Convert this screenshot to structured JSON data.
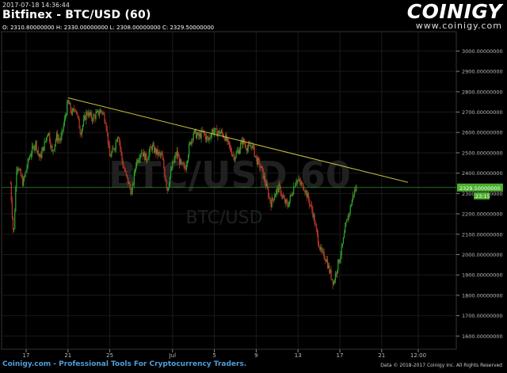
{
  "header": {
    "timestamp": "2017-07-18 14:36:44",
    "title": "Bitfinex - BTC/USD (60)",
    "ohlc": "O: 2310.80000000 H: 2330.00000000 L: 2308.00000000 C: 2329.50000000"
  },
  "brand": {
    "logo_text": "COINIGY",
    "url": "www.coinigy.com"
  },
  "watermark": {
    "line1": "BTC/USD 60",
    "line2": "BTC/USD"
  },
  "footer": {
    "left": "Coinigy.com - Professional Tools For Cryptocurrency Traders.",
    "right": "Data © 2018-2017 Coinigy Inc. All Rights Reserved"
  },
  "colors": {
    "background": "#000000",
    "up": "#2fa52f",
    "down": "#c0392b",
    "trendline": "#c9c53a",
    "price_line": "#2e8b2e",
    "price_label_bg": "#4caf2f",
    "grid": "#1a1a1a",
    "axis_text": "#bbbbbb",
    "footer_link": "#4f9ed8"
  },
  "chart_data": {
    "type": "candlestick",
    "symbol": "BTC/USD",
    "exchange": "Bitfinex",
    "interval": "60",
    "ylim": [
      1535,
      3095
    ],
    "y_ticks": [
      1600,
      1700,
      1800,
      1900,
      2000,
      2100,
      2200,
      2300,
      2400,
      2500,
      2600,
      2700,
      2800,
      2900,
      3000
    ],
    "y_tick_labels": [
      "1600.00000000",
      "1700.00000000",
      "1800.00000000",
      "1900.00000000",
      "2000.00000000",
      "2100.00000000",
      "2200.00000000",
      "2300.00000000",
      "2400.00000000",
      "2500.00000000",
      "2600.00000000",
      "2700.00000000",
      "2800.00000000",
      "2900.00000000",
      "3000.00000000"
    ],
    "x_ticks": [
      {
        "label": "17",
        "day": 0
      },
      {
        "label": "21",
        "day": 4
      },
      {
        "label": "25",
        "day": 8
      },
      {
        "label": "Jul",
        "day": 14
      },
      {
        "label": "5",
        "day": 18
      },
      {
        "label": "9",
        "day": 22
      },
      {
        "label": "13",
        "day": 26
      },
      {
        "label": "17",
        "day": 30
      },
      {
        "label": "21",
        "day": 34
      },
      {
        "label": "12:00",
        "day": 37.5
      }
    ],
    "x_tick_dates": [
      "2017-06-17",
      "2017-06-21",
      "2017-06-25",
      "2017-07-01",
      "2017-07-05",
      "2017-07-09",
      "2017-07-13",
      "2017-07-17",
      "2017-07-21",
      "2017-07-24 12:00"
    ],
    "last_price": 2329.5,
    "last_price_label": "2329.50000000",
    "countdown_label": "23:15",
    "trendline": {
      "start": {
        "day": 4,
        "price": 2770
      },
      "end": {
        "day": 36.5,
        "price": 2355
      }
    },
    "path_anchors": [
      {
        "day": -1.5,
        "price": 2350
      },
      {
        "day": -1.2,
        "price": 2080
      },
      {
        "day": -0.9,
        "price": 2450
      },
      {
        "day": -0.3,
        "price": 2350
      },
      {
        "day": 0.3,
        "price": 2480
      },
      {
        "day": 0.9,
        "price": 2550
      },
      {
        "day": 1.3,
        "price": 2470
      },
      {
        "day": 1.8,
        "price": 2550
      },
      {
        "day": 2.1,
        "price": 2610
      },
      {
        "day": 2.5,
        "price": 2500
      },
      {
        "day": 2.9,
        "price": 2580
      },
      {
        "day": 3.3,
        "price": 2560
      },
      {
        "day": 3.6,
        "price": 2640
      },
      {
        "day": 4.0,
        "price": 2750
      },
      {
        "day": 4.4,
        "price": 2690
      },
      {
        "day": 4.7,
        "price": 2730
      },
      {
        "day": 5.2,
        "price": 2600
      },
      {
        "day": 5.8,
        "price": 2700
      },
      {
        "day": 6.3,
        "price": 2670
      },
      {
        "day": 6.8,
        "price": 2690
      },
      {
        "day": 7.2,
        "price": 2710
      },
      {
        "day": 7.6,
        "price": 2660
      },
      {
        "day": 8.0,
        "price": 2480
      },
      {
        "day": 8.4,
        "price": 2520
      },
      {
        "day": 8.8,
        "price": 2600
      },
      {
        "day": 9.2,
        "price": 2450
      },
      {
        "day": 9.6,
        "price": 2380
      },
      {
        "day": 10.1,
        "price": 2300
      },
      {
        "day": 10.5,
        "price": 2450
      },
      {
        "day": 11.0,
        "price": 2510
      },
      {
        "day": 11.5,
        "price": 2470
      },
      {
        "day": 12.0,
        "price": 2530
      },
      {
        "day": 12.5,
        "price": 2500
      },
      {
        "day": 13.0,
        "price": 2480
      },
      {
        "day": 13.5,
        "price": 2320
      },
      {
        "day": 14.0,
        "price": 2440
      },
      {
        "day": 14.4,
        "price": 2500
      },
      {
        "day": 14.8,
        "price": 2440
      },
      {
        "day": 15.2,
        "price": 2420
      },
      {
        "day": 15.6,
        "price": 2530
      },
      {
        "day": 16.0,
        "price": 2600
      },
      {
        "day": 16.5,
        "price": 2580
      },
      {
        "day": 16.9,
        "price": 2600
      },
      {
        "day": 17.4,
        "price": 2560
      },
      {
        "day": 17.8,
        "price": 2610
      },
      {
        "day": 18.2,
        "price": 2600
      },
      {
        "day": 18.6,
        "price": 2600
      },
      {
        "day": 19.0,
        "price": 2580
      },
      {
        "day": 19.5,
        "price": 2520
      },
      {
        "day": 19.9,
        "price": 2480
      },
      {
        "day": 20.3,
        "price": 2510
      },
      {
        "day": 20.7,
        "price": 2560
      },
      {
        "day": 21.2,
        "price": 2520
      },
      {
        "day": 21.6,
        "price": 2540
      },
      {
        "day": 22.0,
        "price": 2470
      },
      {
        "day": 22.5,
        "price": 2420
      },
      {
        "day": 23.0,
        "price": 2330
      },
      {
        "day": 23.4,
        "price": 2250
      },
      {
        "day": 23.8,
        "price": 2300
      },
      {
        "day": 24.2,
        "price": 2330
      },
      {
        "day": 24.6,
        "price": 2270
      },
      {
        "day": 25.0,
        "price": 2240
      },
      {
        "day": 25.4,
        "price": 2300
      },
      {
        "day": 25.8,
        "price": 2370
      },
      {
        "day": 26.2,
        "price": 2350
      },
      {
        "day": 26.6,
        "price": 2330
      },
      {
        "day": 27.0,
        "price": 2270
      },
      {
        "day": 27.4,
        "price": 2210
      },
      {
        "day": 27.8,
        "price": 2100
      },
      {
        "day": 28.2,
        "price": 2010
      },
      {
        "day": 28.7,
        "price": 1980
      },
      {
        "day": 29.0,
        "price": 1920
      },
      {
        "day": 29.4,
        "price": 1860
      },
      {
        "day": 29.8,
        "price": 1950
      },
      {
        "day": 30.2,
        "price": 2030
      },
      {
        "day": 30.6,
        "price": 2150
      },
      {
        "day": 31.0,
        "price": 2230
      },
      {
        "day": 31.3,
        "price": 2300
      },
      {
        "day": 31.6,
        "price": 2330
      }
    ]
  }
}
